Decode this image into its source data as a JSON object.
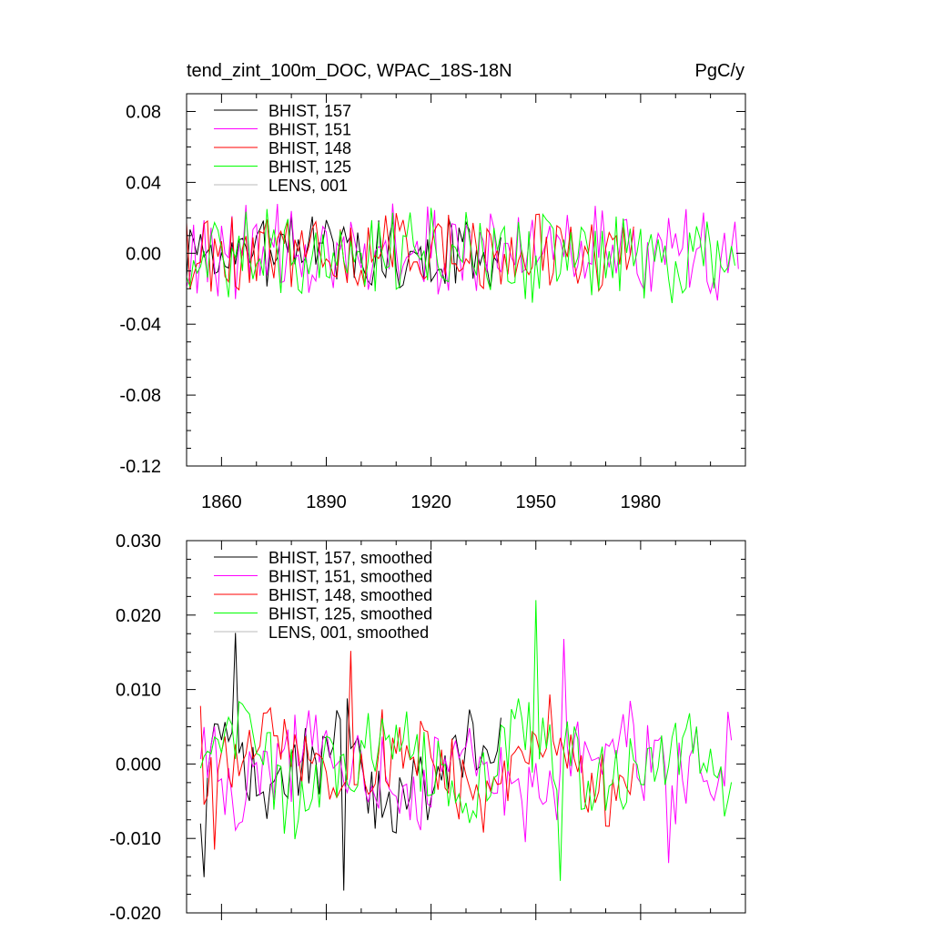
{
  "chart_data": [
    {
      "type": "line",
      "title": "tend_zint_100m_DOC, WPAC_18S-18N",
      "units": "PgC/y",
      "xlabel": "",
      "ylabel": "",
      "xlim": [
        1850,
        2010
      ],
      "ylim": [
        -0.12,
        0.09
      ],
      "xticks": [
        1860,
        1890,
        1920,
        1950,
        1980
      ],
      "xtick_labels": [
        "1860",
        "1890",
        "1920",
        "1950",
        "1980"
      ],
      "yticks": [
        -0.12,
        -0.08,
        -0.04,
        0.0,
        0.04,
        0.08
      ],
      "ytick_labels": [
        "-0.12",
        "-0.08",
        "-0.04",
        "0.00",
        "0.04",
        "0.08"
      ],
      "legend_position": "top-left",
      "series": [
        {
          "name": "BHIST, 157",
          "color": "#000000",
          "start": 1850,
          "end": 1940,
          "amp": 0.024,
          "low": 0.0,
          "seed": 157
        },
        {
          "name": "BHIST, 151",
          "color": "#ff00ff",
          "start": 1850,
          "end": 2008,
          "amp": 0.03,
          "low": 0.0,
          "seed": 151
        },
        {
          "name": "BHIST, 148",
          "color": "#ff0000",
          "start": 1850,
          "end": 1978,
          "amp": 0.028,
          "low": 0.0,
          "seed": 148
        },
        {
          "name": "BHIST, 125",
          "color": "#00ff00",
          "start": 1850,
          "end": 2007,
          "amp": 0.03,
          "low": 0.0,
          "seed": 125
        },
        {
          "name": "LENS, 001",
          "color": "#bbbbbb",
          "start": 1850,
          "end": 1850,
          "amp": 0.0,
          "low": 0.0,
          "seed": 1
        }
      ]
    },
    {
      "type": "line",
      "title": "",
      "xlabel": "",
      "ylabel": "",
      "xlim": [
        1850,
        2010
      ],
      "ylim": [
        -0.02,
        0.03
      ],
      "xticks": [
        1860,
        1890,
        1920,
        1950,
        1980
      ],
      "xtick_labels": [],
      "yticks": [
        -0.02,
        -0.01,
        0.0,
        0.01,
        0.02,
        0.03
      ],
      "ytick_labels": [
        "-0.020",
        "-0.010",
        "0.000",
        "0.010",
        "0.020",
        "0.030"
      ],
      "legend_position": "top-left",
      "series": [
        {
          "name": "BHIST, 157, smoothed",
          "color": "#000000",
          "start": 1854,
          "end": 1940,
          "amp": 0.0065,
          "low": 0.0045,
          "seed": 57,
          "anchors": [
            [
              1854,
              -0.008
            ],
            [
              1855,
              -0.0152
            ],
            [
              1864,
              0.0176
            ],
            [
              1895,
              -0.017
            ]
          ]
        },
        {
          "name": "BHIST, 151, smoothed",
          "color": "#ff00ff",
          "start": 1854,
          "end": 2006,
          "amp": 0.0065,
          "low": 0.0045,
          "seed": 51,
          "anchors": [
            [
              1958,
              0.0168
            ],
            [
              1988,
              -0.0133
            ]
          ]
        },
        {
          "name": "BHIST, 148, smoothed",
          "color": "#ff0000",
          "start": 1854,
          "end": 1978,
          "amp": 0.006,
          "low": 0.0045,
          "seed": 48,
          "anchors": [
            [
              1854,
              0.0078
            ],
            [
              1858,
              -0.0115
            ],
            [
              1897,
              0.0152
            ]
          ]
        },
        {
          "name": "BHIST, 125, smoothed",
          "color": "#00ff00",
          "start": 1854,
          "end": 2006,
          "amp": 0.0065,
          "low": 0.0045,
          "seed": 25,
          "anchors": [
            [
              1950,
              0.022
            ],
            [
              1957,
              -0.0157
            ]
          ]
        },
        {
          "name": "LENS, 001, smoothed",
          "color": "#bbbbbb",
          "start": 1854,
          "end": 1854,
          "amp": 0.0,
          "low": 0.0,
          "seed": 2
        }
      ]
    }
  ]
}
